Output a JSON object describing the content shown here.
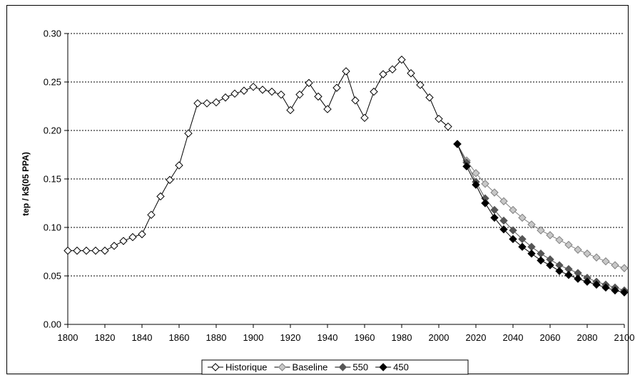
{
  "chart_data": {
    "type": "line",
    "title": "",
    "xlabel": "",
    "ylabel": "tep / k$(05 PPA)",
    "xlim": [
      1800,
      2100
    ],
    "ylim": [
      0,
      0.3
    ],
    "x_ticks": [
      1800,
      1820,
      1840,
      1860,
      1880,
      1900,
      1920,
      1940,
      1960,
      1980,
      2000,
      2020,
      2040,
      2060,
      2080,
      2100
    ],
    "y_ticks": [
      0.0,
      0.05,
      0.1,
      0.15,
      0.2,
      0.25,
      0.3
    ],
    "y_tick_labels": [
      "0.00",
      "0.05",
      "0.10",
      "0.15",
      "0.20",
      "0.25",
      "0.30"
    ],
    "grid": "horizontal dotted",
    "legend_position": "bottom",
    "series": [
      {
        "name": "Historique",
        "marker": "diamond",
        "fill": "#ffffff",
        "stroke": "#000000",
        "x": [
          1800,
          1805,
          1810,
          1815,
          1820,
          1825,
          1830,
          1835,
          1840,
          1845,
          1850,
          1855,
          1860,
          1865,
          1870,
          1875,
          1880,
          1885,
          1890,
          1895,
          1900,
          1905,
          1910,
          1915,
          1920,
          1925,
          1930,
          1935,
          1940,
          1945,
          1950,
          1955,
          1960,
          1965,
          1970,
          1975,
          1980,
          1985,
          1990,
          1995,
          2000,
          2005
        ],
        "y": [
          0.076,
          0.076,
          0.076,
          0.076,
          0.076,
          0.081,
          0.086,
          0.09,
          0.093,
          0.113,
          0.132,
          0.149,
          0.164,
          0.197,
          0.228,
          0.228,
          0.229,
          0.234,
          0.238,
          0.241,
          0.245,
          0.242,
          0.24,
          0.237,
          0.221,
          0.237,
          0.249,
          0.235,
          0.222,
          0.244,
          0.261,
          0.231,
          0.213,
          0.24,
          0.258,
          0.263,
          0.273,
          0.259,
          0.247,
          0.234,
          0.212,
          0.204
        ]
      },
      {
        "name": "Baseline",
        "marker": "diamond",
        "fill": "#c8c8c8",
        "stroke": "#808080",
        "x": [
          2010,
          2015,
          2020,
          2025,
          2030,
          2035,
          2040,
          2045,
          2050,
          2055,
          2060,
          2065,
          2070,
          2075,
          2080,
          2085,
          2090,
          2095,
          2100
        ],
        "y": [
          0.186,
          0.169,
          0.156,
          0.145,
          0.136,
          0.127,
          0.118,
          0.11,
          0.103,
          0.097,
          0.092,
          0.087,
          0.082,
          0.077,
          0.073,
          0.069,
          0.065,
          0.061,
          0.058
        ]
      },
      {
        "name": "550",
        "marker": "diamond",
        "fill": "#555555",
        "stroke": "#555555",
        "x": [
          2010,
          2015,
          2020,
          2025,
          2030,
          2035,
          2040,
          2045,
          2050,
          2055,
          2060,
          2065,
          2070,
          2075,
          2080,
          2085,
          2090,
          2095,
          2100
        ],
        "y": [
          0.186,
          0.167,
          0.147,
          0.13,
          0.118,
          0.107,
          0.097,
          0.088,
          0.08,
          0.073,
          0.067,
          0.061,
          0.057,
          0.053,
          0.048,
          0.044,
          0.041,
          0.038,
          0.035
        ]
      },
      {
        "name": "450",
        "marker": "diamond",
        "fill": "#000000",
        "stroke": "#000000",
        "x": [
          2010,
          2015,
          2020,
          2025,
          2030,
          2035,
          2040,
          2045,
          2050,
          2055,
          2060,
          2065,
          2070,
          2075,
          2080,
          2085,
          2090,
          2095,
          2100
        ],
        "y": [
          0.186,
          0.163,
          0.144,
          0.125,
          0.11,
          0.098,
          0.088,
          0.08,
          0.073,
          0.066,
          0.061,
          0.055,
          0.051,
          0.047,
          0.044,
          0.041,
          0.038,
          0.035,
          0.033
        ]
      }
    ]
  }
}
